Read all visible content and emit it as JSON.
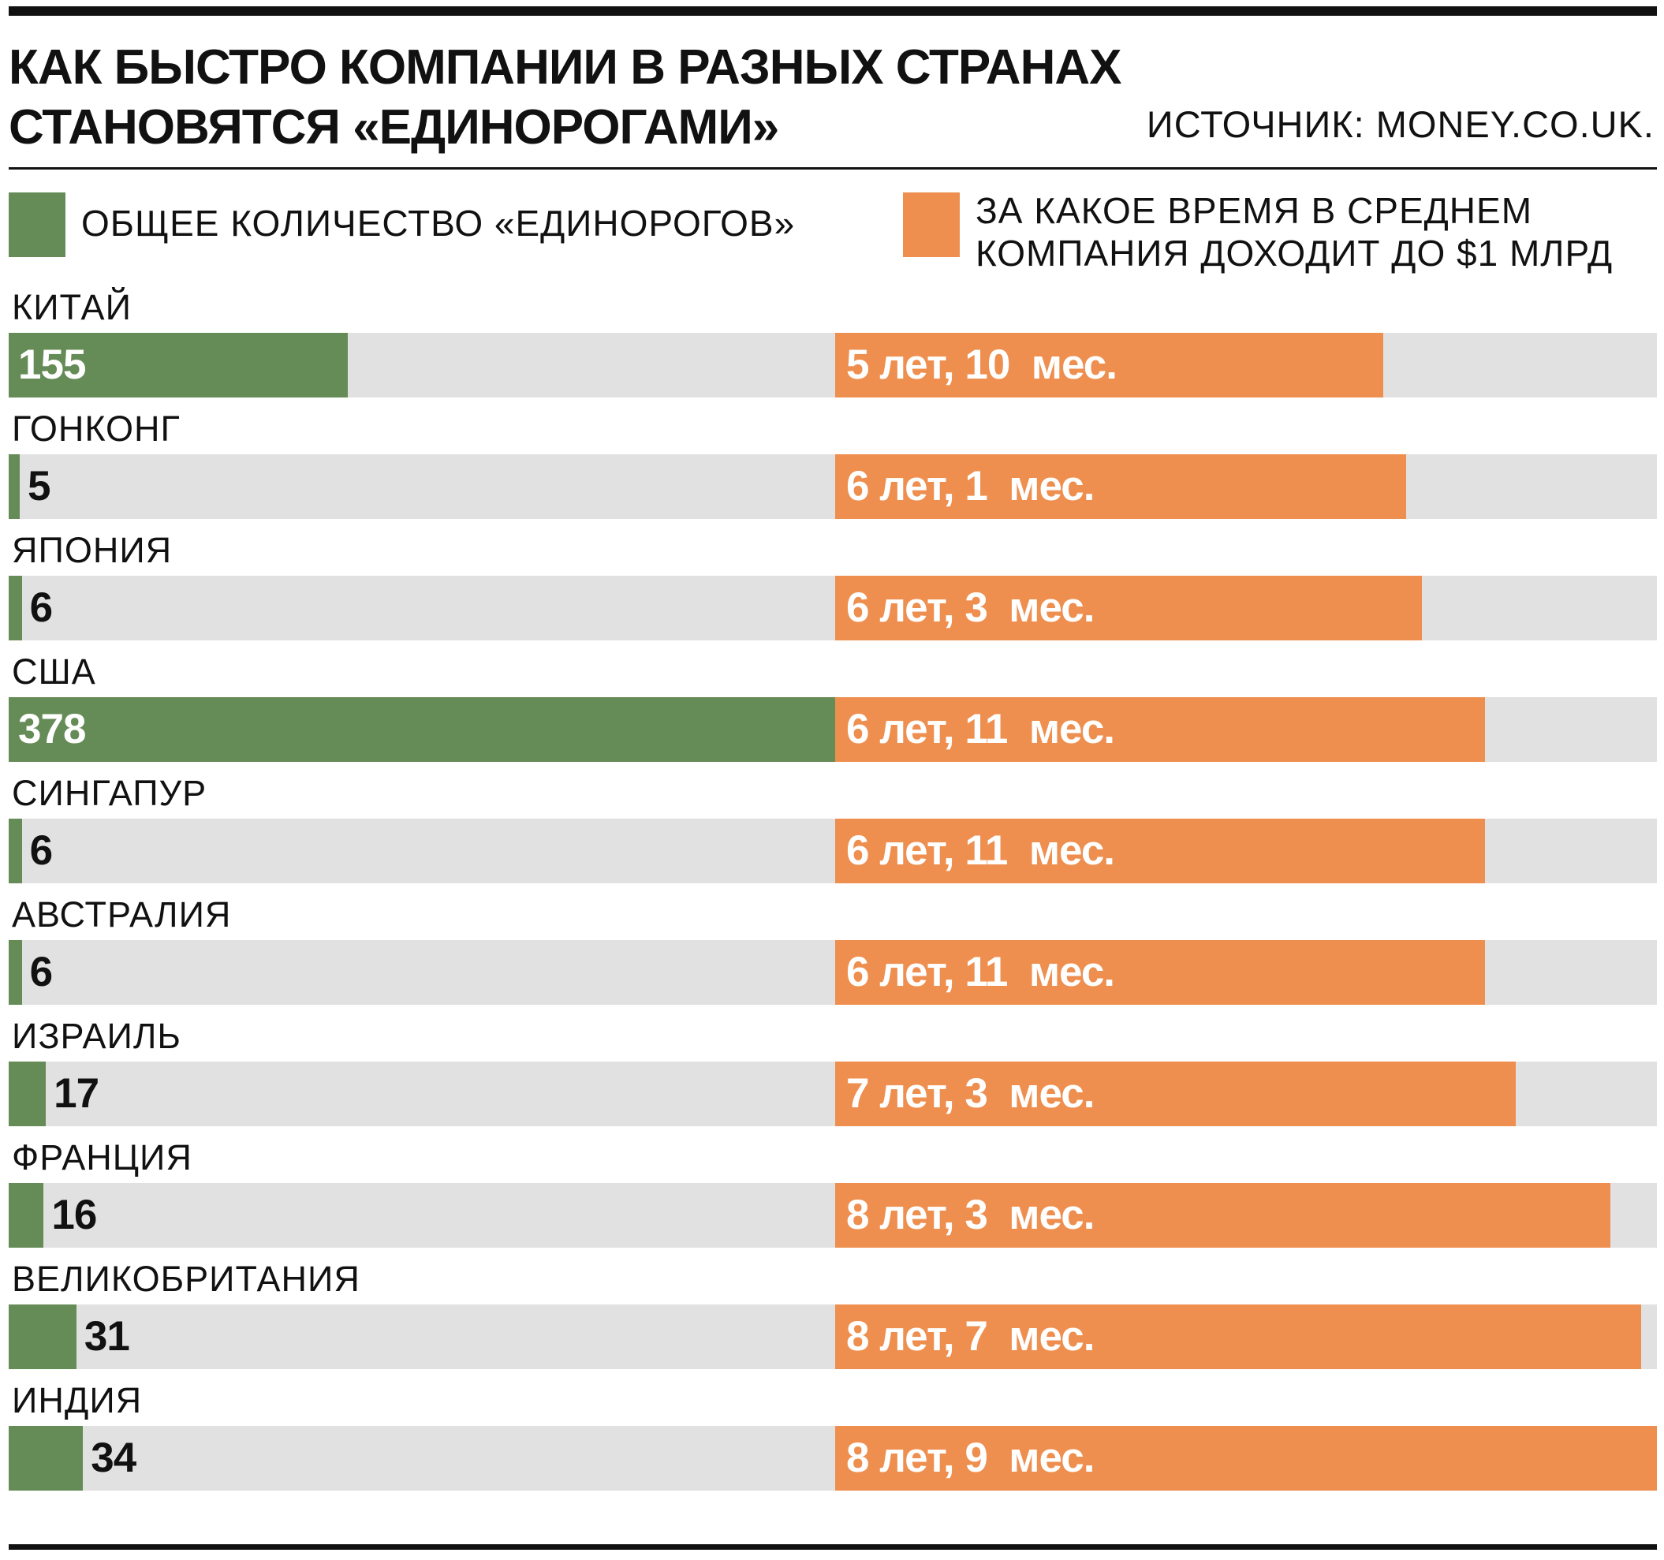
{
  "header": {
    "title": "КАК БЫСТРО КОМПАНИИ В РАЗНЫХ СТРАНАХ СТАНОВЯТСЯ «ЕДИНОРОГАМИ»",
    "source": "ИСТОЧНИК: MONEY.CO.UK."
  },
  "legend": {
    "count_label": "ОБЩЕЕ КОЛИЧЕСТВО «ЕДИНОРОГОВ»",
    "time_label": "ЗА КАКОЕ ВРЕМЯ В СРЕДНЕМ КОМПАНИЯ ДОХОДИТ ДО $1 МЛРД"
  },
  "colors": {
    "count": "#658c57",
    "time": "#ee8f4f",
    "track": "#e1e1e1"
  },
  "chart_data": {
    "type": "bar",
    "orientation": "horizontal",
    "categories": [
      "КИТАЙ",
      "ГОНКОНГ",
      "ЯПОНИЯ",
      "США",
      "СИНГАПУР",
      "АВСТРАЛИЯ",
      "ИЗРАИЛЬ",
      "ФРАНЦИЯ",
      "ВЕЛИКОБРИТАНИЯ",
      "ИНДИЯ"
    ],
    "series": [
      {
        "name": "ОБЩЕЕ КОЛИЧЕСТВО «ЕДИНОРОГОВ»",
        "values": [
          155,
          5,
          6,
          378,
          6,
          6,
          17,
          16,
          31,
          34
        ],
        "labels": [
          "155",
          "5",
          "6",
          "378",
          "6",
          "6",
          "17",
          "16",
          "31",
          "34"
        ],
        "max": 378
      },
      {
        "name": "ЗА КАКОЕ ВРЕМЯ В СРЕДНЕМ КОМПАНИЯ ДОХОДИТ ДО $1 МЛРД",
        "values_months": [
          70,
          73,
          75,
          83,
          83,
          83,
          87,
          99,
          103,
          105
        ],
        "labels": [
          "5 лет, 10  мес.",
          "6 лет, 1  мес.",
          "6 лет, 3  мес.",
          "6 лет, 11  мес.",
          "6 лет, 11  мес.",
          "6 лет, 11  мес.",
          "7 лет, 3  мес.",
          "8 лет, 3  мес.",
          "8 лет, 7  мес.",
          "8 лет, 9  мес."
        ],
        "max": 105
      }
    ]
  }
}
